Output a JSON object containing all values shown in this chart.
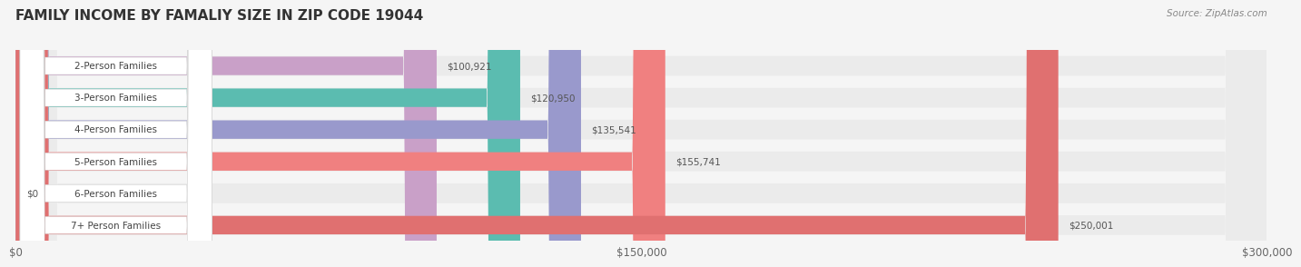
{
  "title": "FAMILY INCOME BY FAMALIY SIZE IN ZIP CODE 19044",
  "source": "Source: ZipAtlas.com",
  "categories": [
    "2-Person Families",
    "3-Person Families",
    "4-Person Families",
    "5-Person Families",
    "6-Person Families",
    "7+ Person Families"
  ],
  "values": [
    100921,
    120950,
    135541,
    155741,
    0,
    250001
  ],
  "bar_colors": [
    "#c9a0c8",
    "#5bbcb0",
    "#9999cc",
    "#f08080",
    "#f5c89a",
    "#e07070"
  ],
  "bar_bg_color": "#ebebeb",
  "background_color": "#f5f5f5",
  "xlim": [
    0,
    300000
  ],
  "xticks": [
    0,
    150000,
    300000
  ],
  "xtick_labels": [
    "$0",
    "$150,000",
    "$300,000"
  ],
  "value_labels": [
    "$100,921",
    "$120,950",
    "$135,541",
    "$155,741",
    "$0",
    "$250,001"
  ],
  "title_fontsize": 11,
  "tick_fontsize": 8.5,
  "label_fontsize": 7.5,
  "value_fontsize": 7.5,
  "source_fontsize": 7.5
}
